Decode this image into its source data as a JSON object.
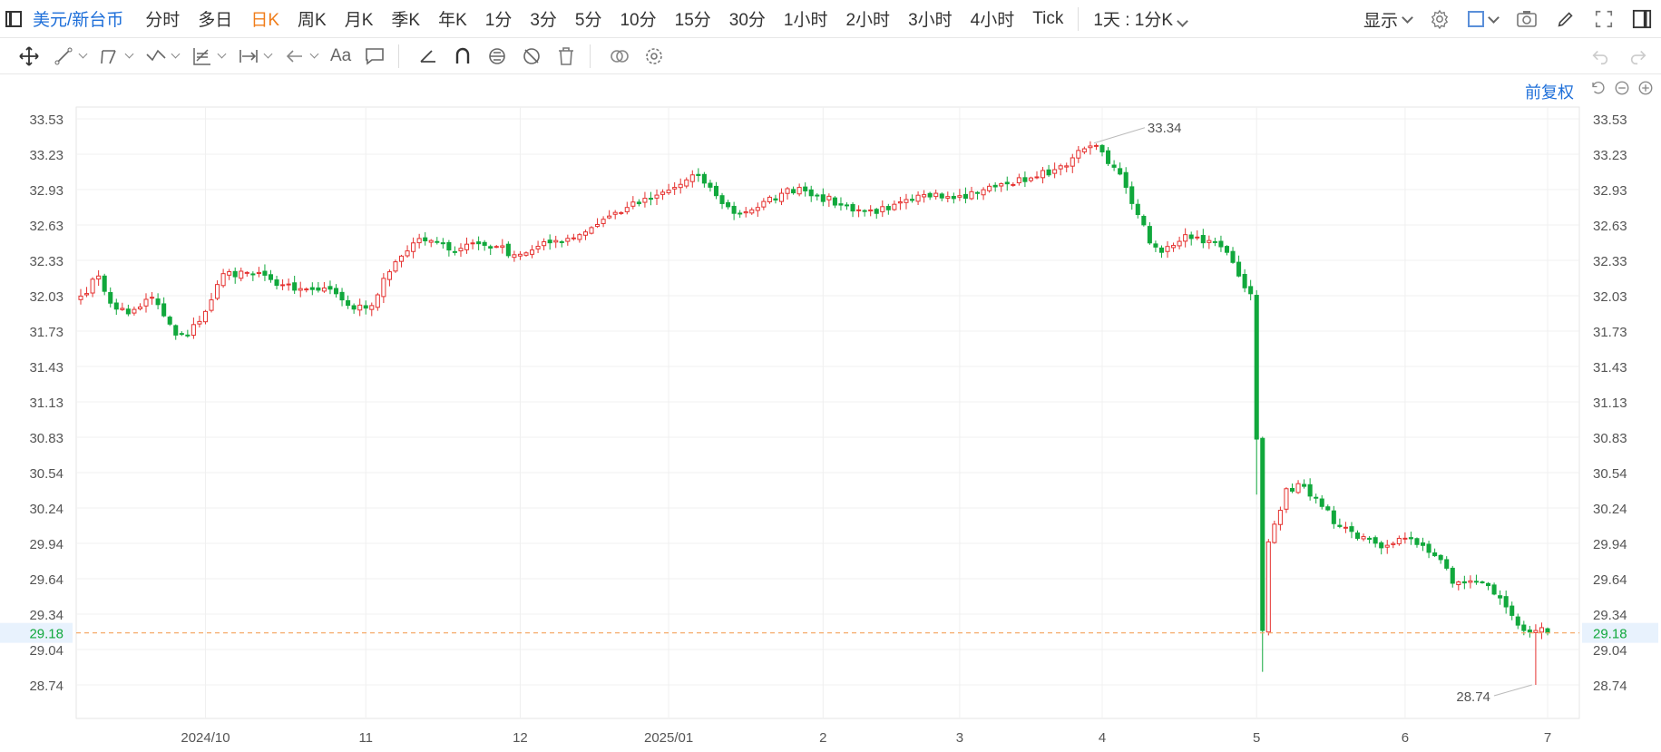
{
  "toolbar": {
    "symbol": "美元/新台币",
    "periods": [
      "分时",
      "多日",
      "日K",
      "周K",
      "月K",
      "季K",
      "年K",
      "1分",
      "3分",
      "5分",
      "10分",
      "15分",
      "30分",
      "1小时",
      "2小时",
      "3小时",
      "4小时",
      "Tick"
    ],
    "active_period": "日K",
    "interval_select": "1天 : 1分K",
    "display_label": "显示"
  },
  "drawbar": {
    "text_tool_label": "Aa"
  },
  "price_adjust_label": "前复权",
  "colors": {
    "up": "#e5312f",
    "down": "#11a83c",
    "last_price_line": "#f5a35c",
    "last_price_bg": "#e8f2fd"
  },
  "chart_data": {
    "type": "candlestick",
    "y_ticks": [
      "33.53",
      "33.23",
      "32.93",
      "32.63",
      "32.33",
      "32.03",
      "31.73",
      "31.43",
      "31.13",
      "30.83",
      "30.54",
      "30.24",
      "29.94",
      "29.64",
      "29.34",
      "29.04",
      "28.74"
    ],
    "x_ticks": [
      {
        "label": "2024/10",
        "index": 21
      },
      {
        "label": "11",
        "index": 48
      },
      {
        "label": "12",
        "index": 74
      },
      {
        "label": "2025/01",
        "index": 99
      },
      {
        "label": "2",
        "index": 125
      },
      {
        "label": "3",
        "index": 148
      },
      {
        "label": "4",
        "index": 172
      },
      {
        "label": "5",
        "index": 198
      },
      {
        "label": "6",
        "index": 223
      },
      {
        "label": "7",
        "index": 247
      }
    ],
    "ylim": [
      28.6,
      33.6
    ],
    "last_price": "29.18",
    "max_label": "33.34",
    "min_label": "28.74",
    "keypoints": [
      [
        0,
        32.03
      ],
      [
        3,
        32.2
      ],
      [
        5,
        31.97
      ],
      [
        8,
        31.88
      ],
      [
        12,
        32.02
      ],
      [
        16,
        31.7
      ],
      [
        18,
        31.7
      ],
      [
        21,
        31.9
      ],
      [
        24,
        32.22
      ],
      [
        28,
        32.23
      ],
      [
        32,
        32.17
      ],
      [
        36,
        32.08
      ],
      [
        40,
        32.08
      ],
      [
        43,
        32.05
      ],
      [
        46,
        31.92
      ],
      [
        49,
        31.95
      ],
      [
        51,
        32.18
      ],
      [
        53,
        32.32
      ],
      [
        56,
        32.48
      ],
      [
        59,
        32.5
      ],
      [
        62,
        32.42
      ],
      [
        66,
        32.48
      ],
      [
        70,
        32.45
      ],
      [
        73,
        32.38
      ],
      [
        76,
        32.42
      ],
      [
        80,
        32.5
      ],
      [
        84,
        32.55
      ],
      [
        88,
        32.68
      ],
      [
        92,
        32.78
      ],
      [
        96,
        32.85
      ],
      [
        100,
        32.95
      ],
      [
        104,
        33.05
      ],
      [
        107,
        32.88
      ],
      [
        110,
        32.73
      ],
      [
        114,
        32.78
      ],
      [
        118,
        32.9
      ],
      [
        121,
        32.95
      ],
      [
        124,
        32.88
      ],
      [
        128,
        32.8
      ],
      [
        132,
        32.75
      ],
      [
        136,
        32.76
      ],
      [
        140,
        32.84
      ],
      [
        144,
        32.9
      ],
      [
        148,
        32.88
      ],
      [
        152,
        32.93
      ],
      [
        156,
        32.98
      ],
      [
        160,
        33.03
      ],
      [
        164,
        33.1
      ],
      [
        167,
        33.2
      ],
      [
        170,
        33.3
      ],
      [
        172,
        33.25
      ],
      [
        174,
        33.12
      ],
      [
        176,
        32.95
      ],
      [
        178,
        32.72
      ],
      [
        180,
        32.48
      ],
      [
        182,
        32.4
      ],
      [
        186,
        32.55
      ],
      [
        190,
        32.5
      ],
      [
        193,
        32.4
      ],
      [
        195,
        32.2
      ],
      [
        196,
        32.1
      ],
      [
        197,
        32.05
      ],
      [
        198,
        30.82
      ],
      [
        199,
        29.2
      ],
      [
        200,
        29.95
      ],
      [
        203,
        30.4
      ],
      [
        206,
        30.42
      ],
      [
        209,
        30.25
      ],
      [
        212,
        30.08
      ],
      [
        215,
        29.98
      ],
      [
        219,
        29.9
      ],
      [
        222,
        29.98
      ],
      [
        226,
        29.92
      ],
      [
        229,
        29.8
      ],
      [
        231,
        29.6
      ],
      [
        234,
        29.62
      ],
      [
        237,
        29.58
      ],
      [
        240,
        29.4
      ],
      [
        243,
        29.2
      ],
      [
        245,
        29.2
      ],
      [
        247,
        29.18
      ]
    ]
  }
}
